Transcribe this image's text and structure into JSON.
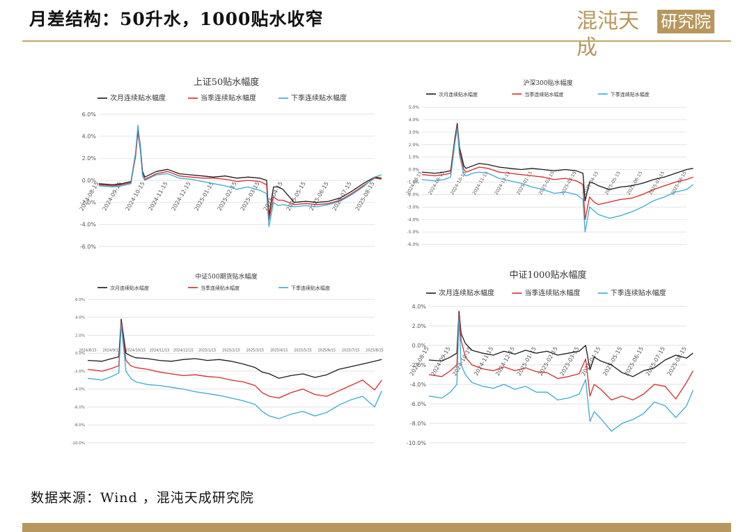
{
  "page": {
    "title": "月差结构：50升水，1000贴水收窄",
    "logo_text": "混沌天成",
    "logo_badge": "研究院",
    "source": "数据来源：Wind ，混沌天成研究院"
  },
  "colors": {
    "near": "#1a1a1a",
    "season": "#d42a2a",
    "next_season": "#3aa9d6",
    "grid": "#d9d9d9",
    "accent": "#b7975d"
  },
  "chart_data": [
    {
      "type": "line",
      "title": "上证50贴水幅度",
      "ylim": [
        -6,
        6
      ],
      "yticks": [
        -6,
        -4,
        -2,
        0,
        2,
        4,
        6
      ],
      "ytick_labels": [
        "-6.0%",
        "-4.0%",
        "-2.0%",
        "0.0%",
        "2.0%",
        "4.0%",
        "6.0%"
      ],
      "x_labels": [
        "2024-08-15",
        "2024-09-15",
        "2024-10-15",
        "2024-11-15",
        "2024-12-15",
        "2025-01-15",
        "2025-02-15",
        "2025-03-15",
        "2025-04-15",
        "2025-05-15",
        "2025-06-15",
        "2025-07-15",
        "2025-08-15"
      ],
      "series": [
        {
          "name": "次月连续贴水幅度",
          "x": [
            0,
            0.6,
            1,
            1.4,
            1.6,
            1.7,
            1.8,
            1.9,
            2,
            2.2,
            2.5,
            3,
            3.5,
            4,
            4.5,
            5,
            5.5,
            6,
            6.5,
            7,
            7.3,
            7.4,
            7.6,
            7.8,
            8,
            8.5,
            9,
            9.5,
            10,
            10.5,
            11,
            11.5,
            12,
            12.3
          ],
          "y": [
            -0.3,
            -0.4,
            -0.3,
            -0.1,
            2.5,
            4.8,
            3.2,
            0.8,
            0.3,
            0.5,
            0.8,
            1.0,
            0.6,
            0.5,
            0.4,
            0.3,
            0.4,
            0.2,
            0.3,
            0.2,
            0.0,
            -3.2,
            -0.6,
            -0.6,
            -0.8,
            -2.0,
            -1.9,
            -2.0,
            -1.9,
            -1.6,
            -1.0,
            -0.3,
            0.3,
            0.2
          ]
        },
        {
          "name": "当季连续贴水幅度",
          "x": [
            0,
            0.6,
            1,
            1.4,
            1.6,
            1.7,
            1.8,
            1.9,
            2,
            2.2,
            2.5,
            3,
            3.5,
            4,
            4.5,
            5,
            5.5,
            6,
            6.5,
            7,
            7.3,
            7.4,
            7.6,
            7.8,
            8,
            8.5,
            9,
            9.5,
            10,
            10.5,
            11,
            11.5,
            12,
            12.3
          ],
          "y": [
            -0.4,
            -0.5,
            -0.4,
            -0.2,
            2.2,
            4.4,
            2.8,
            0.5,
            0.1,
            0.3,
            0.6,
            0.8,
            0.4,
            0.3,
            0.2,
            0.2,
            0.1,
            -0.1,
            0.0,
            -0.1,
            -0.4,
            -3.6,
            -1.5,
            -1.8,
            -1.8,
            -2.2,
            -2.1,
            -2.2,
            -2.1,
            -1.8,
            -1.2,
            -0.5,
            0.2,
            0.1
          ]
        },
        {
          "name": "下季连续贴水幅度",
          "x": [
            0,
            0.6,
            1,
            1.4,
            1.6,
            1.7,
            1.8,
            1.9,
            2,
            2.2,
            2.5,
            3,
            3.5,
            4,
            4.5,
            5,
            5.5,
            6,
            6.5,
            7,
            7.3,
            7.4,
            7.6,
            7.8,
            8,
            8.5,
            9,
            9.5,
            10,
            10.5,
            11,
            11.5,
            12,
            12.3
          ],
          "y": [
            -0.5,
            -0.6,
            -0.5,
            -0.3,
            2.6,
            5.0,
            3.0,
            0.4,
            0.0,
            0.2,
            0.5,
            0.6,
            0.2,
            0.1,
            -0.1,
            -0.3,
            -0.5,
            -0.8,
            -0.6,
            -0.9,
            -1.2,
            -4.2,
            -2.0,
            -2.3,
            -2.2,
            -2.4,
            -2.3,
            -2.4,
            -2.2,
            -1.9,
            -1.3,
            -0.6,
            0.3,
            0.5
          ]
        }
      ]
    },
    {
      "type": "line",
      "title": "沪深300贴水幅度",
      "ylim": [
        -6,
        5
      ],
      "yticks": [
        -6,
        -5,
        -4,
        -3,
        -2,
        -1,
        0,
        1,
        2,
        3,
        4,
        5
      ],
      "ytick_labels": [
        "-6.0%",
        "-5.0%",
        "-4.0%",
        "-3.0%",
        "-2.0%",
        "-1.0%",
        "0.0%",
        "1.0%",
        "2.0%",
        "3.0%",
        "4.0%",
        "5.0%"
      ],
      "x_labels": [
        "2024-08-15",
        "2024-09-15",
        "2024-10-15",
        "2024-11-15",
        "2024-12-15",
        "2025-01-15",
        "2025-02-15",
        "2025-03-15",
        "2025-04-15",
        "2025-05-15",
        "2025-06-15",
        "2025-07-15",
        "2025-08-15"
      ],
      "series": [
        {
          "name": "次月连续贴水幅度",
          "x": [
            0,
            0.6,
            1,
            1.3,
            1.5,
            1.6,
            1.7,
            1.9,
            2,
            2.3,
            2.6,
            3,
            3.5,
            4,
            4.5,
            5,
            5.5,
            6,
            6.5,
            7,
            7.3,
            7.4,
            7.6,
            7.8,
            8,
            8.5,
            9,
            9.5,
            10,
            10.5,
            11,
            11.5,
            12,
            12.3
          ],
          "y": [
            -0.2,
            -0.3,
            -0.2,
            -0.1,
            2.6,
            3.7,
            1.8,
            0.3,
            0.1,
            0.3,
            0.5,
            0.4,
            0.2,
            0.1,
            0.0,
            0.1,
            0.0,
            -0.1,
            0.0,
            -0.1,
            -0.3,
            -2.5,
            -1.0,
            -1.1,
            -1.3,
            -1.6,
            -1.4,
            -1.3,
            -1.1,
            -0.8,
            -0.6,
            -0.3,
            0.0,
            0.1
          ]
        },
        {
          "name": "当季连续贴水幅度",
          "x": [
            0,
            0.6,
            1,
            1.3,
            1.5,
            1.6,
            1.7,
            1.9,
            2,
            2.3,
            2.6,
            3,
            3.5,
            4,
            4.5,
            5,
            5.5,
            6,
            6.5,
            7,
            7.3,
            7.4,
            7.6,
            7.8,
            8,
            8.5,
            9,
            9.5,
            10,
            10.5,
            11,
            11.5,
            12,
            12.3
          ],
          "y": [
            -0.4,
            -0.5,
            -0.4,
            -0.3,
            2.4,
            3.5,
            1.5,
            0.0,
            -0.2,
            0.0,
            0.2,
            0.1,
            -0.2,
            -0.3,
            -0.4,
            -0.5,
            -0.6,
            -0.8,
            -0.7,
            -0.9,
            -1.2,
            -4.0,
            -2.2,
            -2.6,
            -2.8,
            -2.6,
            -2.4,
            -2.3,
            -2.0,
            -1.6,
            -1.3,
            -1.0,
            -0.8,
            -0.6
          ]
        },
        {
          "name": "下季连续贴水幅度",
          "x": [
            0,
            0.6,
            1,
            1.3,
            1.5,
            1.6,
            1.7,
            1.9,
            2,
            2.3,
            2.6,
            3,
            3.5,
            4,
            4.5,
            5,
            5.5,
            6,
            6.5,
            7,
            7.3,
            7.4,
            7.6,
            7.8,
            8,
            8.5,
            9,
            9.5,
            10,
            10.5,
            11,
            11.5,
            12,
            12.3
          ],
          "y": [
            -0.8,
            -0.9,
            -0.8,
            -0.6,
            2.2,
            3.3,
            1.2,
            -0.4,
            -0.5,
            -0.3,
            -0.2,
            -0.3,
            -0.7,
            -0.9,
            -1.1,
            -1.4,
            -1.6,
            -1.9,
            -1.8,
            -2.0,
            -2.4,
            -5.0,
            -3.0,
            -3.3,
            -3.6,
            -3.9,
            -3.7,
            -3.4,
            -3.0,
            -2.5,
            -2.2,
            -1.8,
            -1.6,
            -1.2
          ]
        }
      ]
    },
    {
      "type": "line",
      "title": "中证500期货贴水幅度",
      "ylim": [
        -10,
        6
      ],
      "yticks": [
        -10,
        -8,
        -6,
        -4,
        -2,
        0,
        2,
        4,
        6
      ],
      "ytick_labels": [
        "-10.0%",
        "-8.0%",
        "-6.0%",
        "-4.0%",
        "-2.0%",
        "0.0%",
        "2.0%",
        "4.0%",
        "6.0%"
      ],
      "x_labels": [
        "2024/8/15",
        "2024/9/15",
        "2024/10/15",
        "2024/11/15",
        "2024/12/15",
        "2025/1/15",
        "2025/2/15",
        "2025/3/15",
        "2025/4/15",
        "2025/5/15",
        "2025/6/15",
        "2025/7/15",
        "2025/8/15"
      ],
      "series": [
        {
          "name": "次月连续贴水幅度",
          "x": [
            0,
            0.6,
            1,
            1.3,
            1.4,
            1.6,
            1.8,
            2,
            2.5,
            3,
            3.5,
            4,
            4.5,
            5,
            5.5,
            6,
            6.5,
            7,
            7.3,
            7.6,
            8,
            8.5,
            9,
            9.5,
            10,
            10.5,
            11,
            11.5,
            12,
            12.3
          ],
          "y": [
            -0.8,
            -0.9,
            -0.6,
            -0.4,
            3.8,
            0.0,
            -0.3,
            -0.5,
            -0.6,
            -0.8,
            -0.9,
            -0.7,
            -0.6,
            -0.8,
            -0.7,
            -0.9,
            -1.2,
            -1.6,
            -2.1,
            -2.3,
            -2.8,
            -2.5,
            -2.3,
            -2.7,
            -2.4,
            -1.8,
            -1.5,
            -1.2,
            -0.9,
            -0.7
          ]
        },
        {
          "name": "当季连续贴水幅度",
          "x": [
            0,
            0.6,
            1,
            1.3,
            1.4,
            1.6,
            1.8,
            2,
            2.5,
            3,
            3.5,
            4,
            4.5,
            5,
            5.5,
            6,
            6.5,
            7,
            7.3,
            7.6,
            8,
            8.5,
            9,
            9.5,
            10,
            10.5,
            11,
            11.5,
            12,
            12.3
          ],
          "y": [
            -1.8,
            -2.0,
            -1.7,
            -1.4,
            3.5,
            -0.8,
            -1.4,
            -1.6,
            -1.8,
            -2.1,
            -2.3,
            -2.5,
            -2.4,
            -2.6,
            -2.7,
            -3.0,
            -3.2,
            -3.6,
            -4.4,
            -4.8,
            -5.0,
            -4.4,
            -4.0,
            -4.6,
            -4.8,
            -4.2,
            -3.6,
            -3.0,
            -4.1,
            -3.0
          ]
        },
        {
          "name": "下季连续贴水幅度",
          "x": [
            0,
            0.6,
            1,
            1.3,
            1.4,
            1.6,
            1.8,
            2,
            2.5,
            3,
            3.5,
            4,
            4.5,
            5,
            5.5,
            6,
            6.5,
            7,
            7.3,
            7.6,
            8,
            8.5,
            9,
            9.5,
            10,
            10.5,
            11,
            11.5,
            12,
            12.3
          ],
          "y": [
            -2.8,
            -3.0,
            -2.6,
            -2.2,
            3.2,
            -2.0,
            -2.8,
            -3.2,
            -3.5,
            -3.6,
            -3.8,
            -4.0,
            -4.3,
            -4.5,
            -4.7,
            -5.0,
            -5.3,
            -5.7,
            -6.5,
            -7.0,
            -7.3,
            -6.8,
            -6.5,
            -7.0,
            -6.6,
            -5.8,
            -5.2,
            -4.8,
            -6.0,
            -4.2
          ]
        }
      ]
    },
    {
      "type": "line",
      "title": "中证1000贴水幅度",
      "ylim": [
        -10,
        4
      ],
      "yticks": [
        -10,
        -8,
        -6,
        -4,
        -2,
        0,
        2,
        4
      ],
      "ytick_labels": [
        "-10.0%",
        "-8.0%",
        "-6.0%",
        "-4.0%",
        "-2.0%",
        "0.0%",
        "2.0%",
        "4.0%"
      ],
      "x_labels": [
        "2024-08-15",
        "2024-09-15",
        "2024-10-15",
        "2024-11-15",
        "2024-12-15",
        "2025-01-15",
        "2025-02-15",
        "2025-03-15",
        "2025-04-15",
        "2025-05-15",
        "2025-06-15",
        "2025-07-15",
        "2025-08-15"
      ],
      "series": [
        {
          "name": "次月连续贴水幅度",
          "x": [
            0,
            0.6,
            1,
            1.3,
            1.4,
            1.5,
            1.7,
            2,
            2.5,
            3,
            3.5,
            4,
            4.5,
            5,
            5.5,
            6,
            6.5,
            7,
            7.3,
            7.5,
            7.7,
            8,
            8.5,
            9,
            9.5,
            10,
            10.5,
            11,
            11.5,
            12,
            12.3
          ],
          "y": [
            -1.5,
            -1.6,
            -1.2,
            -0.8,
            3.5,
            1.2,
            0.2,
            -0.5,
            -0.8,
            -1.0,
            -0.6,
            -0.9,
            -0.5,
            -0.8,
            -0.6,
            -1.0,
            -0.8,
            -0.6,
            0.0,
            -2.5,
            -1.2,
            -1.6,
            -2.0,
            -2.8,
            -3.2,
            -2.6,
            -2.3,
            -1.5,
            -1.0,
            -1.3,
            -0.8
          ]
        },
        {
          "name": "当季连续贴水幅度",
          "x": [
            0,
            0.6,
            1,
            1.3,
            1.4,
            1.5,
            1.7,
            2,
            2.5,
            3,
            3.5,
            4,
            4.5,
            5,
            5.5,
            6,
            6.5,
            7,
            7.3,
            7.5,
            7.7,
            8,
            8.5,
            9,
            9.5,
            10,
            10.5,
            11,
            11.5,
            12,
            12.3
          ],
          "y": [
            -3.0,
            -3.2,
            -2.6,
            -2.0,
            3.2,
            0.5,
            -1.2,
            -2.0,
            -2.4,
            -2.6,
            -2.2,
            -2.6,
            -2.3,
            -2.7,
            -2.8,
            -3.4,
            -3.2,
            -2.9,
            -1.4,
            -5.2,
            -4.0,
            -4.5,
            -5.6,
            -5.2,
            -5.6,
            -5.0,
            -4.0,
            -4.2,
            -5.5,
            -3.8,
            -2.6
          ]
        },
        {
          "name": "下季连续贴水幅度",
          "x": [
            0,
            0.6,
            1,
            1.3,
            1.4,
            1.5,
            1.7,
            2,
            2.5,
            3,
            3.5,
            4,
            4.5,
            5,
            5.5,
            6,
            6.5,
            7,
            7.3,
            7.5,
            7.7,
            8,
            8.5,
            9,
            9.5,
            10,
            10.5,
            11,
            11.5,
            12,
            12.3
          ],
          "y": [
            -5.2,
            -5.4,
            -4.8,
            -4.0,
            2.8,
            -2.0,
            -3.0,
            -3.8,
            -4.2,
            -4.4,
            -4.0,
            -4.5,
            -4.2,
            -4.8,
            -4.8,
            -5.6,
            -5.4,
            -5.0,
            -3.5,
            -7.8,
            -6.8,
            -7.5,
            -8.8,
            -8.0,
            -7.6,
            -7.0,
            -5.8,
            -6.2,
            -7.4,
            -6.2,
            -4.6
          ]
        }
      ]
    }
  ]
}
